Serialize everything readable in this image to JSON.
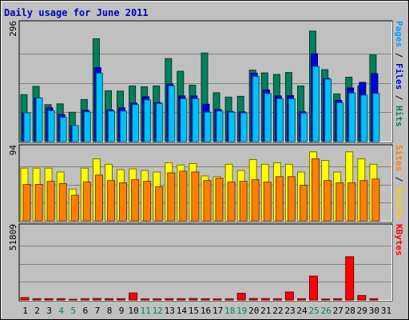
{
  "chart_data": {
    "type": "bar",
    "title": "Daily usage for June 2011",
    "categories": [
      "1",
      "2",
      "3",
      "4",
      "5",
      "6",
      "7",
      "8",
      "9",
      "10",
      "11",
      "12",
      "13",
      "14",
      "15",
      "16",
      "17",
      "18",
      "19",
      "20",
      "21",
      "22",
      "23",
      "24",
      "25",
      "26",
      "27",
      "28",
      "29",
      "30",
      "31"
    ],
    "weekend_days": [
      4,
      5,
      11,
      12,
      18,
      19,
      25,
      26
    ],
    "panels": [
      {
        "id": "hits-panel",
        "ymax_label": "296",
        "ymax": 296,
        "label_parts": [
          {
            "text": "Pages",
            "color": "#00a0ff"
          },
          {
            "text": " / ",
            "color": "#000000"
          },
          {
            "text": "Files",
            "color": "#0000e0"
          },
          {
            "text": " / ",
            "color": "#000000"
          },
          {
            "text": "Hits",
            "color": "#00805c"
          }
        ],
        "series": [
          {
            "name": "Hits",
            "color": "#00805c",
            "values": [
              118,
              139,
              93,
              95,
              74,
              106,
              259,
              128,
              127,
              140,
              138,
              140,
              209,
              177,
              142,
              223,
              123,
              112,
              114,
              180,
              173,
              169,
              174,
              140,
              278,
              181,
              120,
              162,
              140,
              218,
              0
            ]
          },
          {
            "name": "Files",
            "color": "#0000e0",
            "values": [
              72,
              110,
              85,
              68,
              40,
              79,
              186,
              80,
              85,
              97,
              113,
              98,
              145,
              115,
              115,
              94,
              81,
              76,
              75,
              172,
              130,
              115,
              116,
              75,
              221,
              159,
              104,
              135,
              149,
              171,
              0
            ]
          },
          {
            "name": "Pages",
            "color": "#00c0ff",
            "values": [
              72,
              110,
              78,
              61,
              40,
              75,
              172,
              77,
              77,
              93,
              105,
              96,
              140,
              108,
              108,
              74,
              77,
              74,
              72,
              164,
              121,
              108,
              108,
              71,
              189,
              157,
              98,
              122,
              117,
              121,
              0
            ]
          }
        ]
      },
      {
        "id": "visits-panel",
        "ymax_label": "94",
        "ymax": 94,
        "label_parts": [
          {
            "text": "Sites",
            "color": "#ff8000"
          },
          {
            "text": " / ",
            "color": "#000000"
          },
          {
            "text": "Visits",
            "color": "#ffd000"
          }
        ],
        "series": [
          {
            "name": "Visits",
            "color": "#ffff00",
            "values": [
              68,
              68,
              68,
              63,
              41,
              68,
              80,
              73,
              66,
              67,
              65,
              63,
              75,
              72,
              74,
              58,
              57,
              73,
              65,
              79,
              73,
              75,
              73,
              63,
              89,
              78,
              63,
              89,
              80,
              73,
              0
            ]
          },
          {
            "name": "Sites",
            "color": "#ff8000",
            "values": [
              47,
              47,
              51,
              48,
              33,
              50,
              59,
              52,
              49,
              53,
              51,
              44,
              62,
              64,
              63,
              52,
              55,
              50,
              51,
              53,
              50,
              57,
              57,
              46,
              80,
              52,
              49,
              49,
              52,
              54,
              0
            ]
          }
        ]
      },
      {
        "id": "kbytes-panel",
        "ymax_label": "51809",
        "ymax": 51809,
        "label_parts": [
          {
            "text": "KBytes",
            "color": "#ff0000"
          }
        ],
        "series": [
          {
            "name": "KBytes",
            "color": "#ff0000",
            "values": [
              1700,
              900,
              900,
              900,
              500,
              900,
              1100,
              900,
              900,
              5000,
              800,
              800,
              900,
              900,
              1100,
              900,
              800,
              800,
              4800,
              1100,
              1000,
              900,
              5700,
              900,
              17000,
              700,
              900,
              30800,
              3200,
              900,
              0
            ]
          }
        ]
      }
    ]
  }
}
